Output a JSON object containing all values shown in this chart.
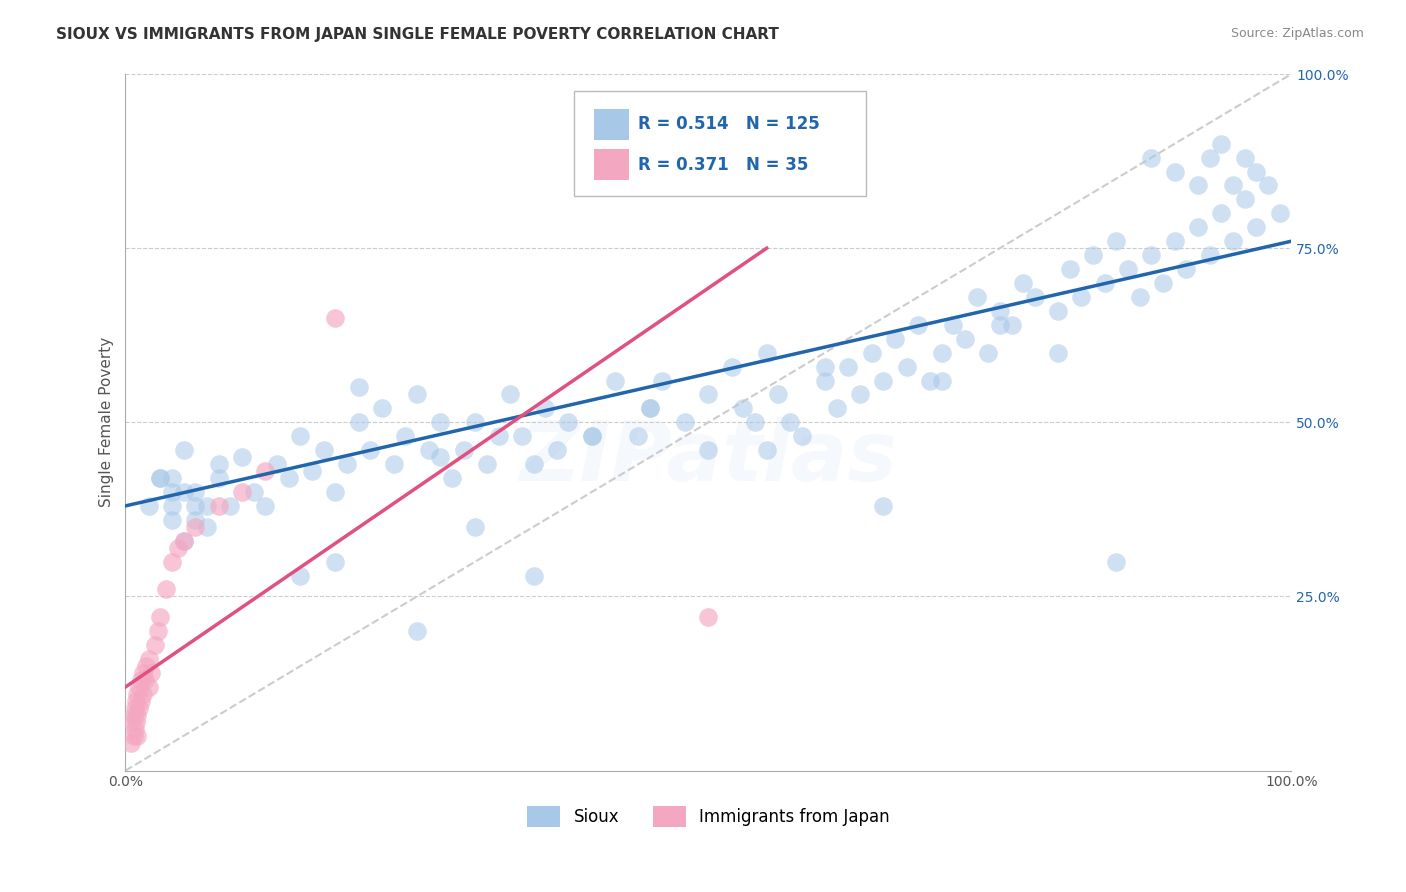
{
  "title": "SIOUX VS IMMIGRANTS FROM JAPAN SINGLE FEMALE POVERTY CORRELATION CHART",
  "source": "Source: ZipAtlas.com",
  "ylabel": "Single Female Poverty",
  "xlim": [
    0,
    1
  ],
  "ylim": [
    0,
    1
  ],
  "legend_blue_label": "Sioux",
  "legend_pink_label": "Immigrants from Japan",
  "blue_R": "0.514",
  "blue_N": "125",
  "pink_R": "0.371",
  "pink_N": "35",
  "blue_color": "#a8c8e8",
  "pink_color": "#f4a7c0",
  "blue_line_color": "#2166ac",
  "pink_line_color": "#e05080",
  "ref_line_color": "#cccccc",
  "watermark": "ZIPatlas",
  "background_color": "#ffffff",
  "grid_color": "#cccccc",
  "blue_scatter_x": [
    0.02,
    0.03,
    0.04,
    0.05,
    0.06,
    0.07,
    0.08,
    0.09,
    0.1,
    0.11,
    0.12,
    0.13,
    0.14,
    0.15,
    0.16,
    0.17,
    0.18,
    0.19,
    0.2,
    0.21,
    0.22,
    0.23,
    0.24,
    0.25,
    0.26,
    0.27,
    0.28,
    0.29,
    0.3,
    0.31,
    0.32,
    0.33,
    0.34,
    0.35,
    0.36,
    0.37,
    0.38,
    0.4,
    0.42,
    0.44,
    0.45,
    0.46,
    0.48,
    0.5,
    0.52,
    0.53,
    0.54,
    0.55,
    0.56,
    0.57,
    0.58,
    0.6,
    0.61,
    0.62,
    0.63,
    0.64,
    0.65,
    0.66,
    0.67,
    0.68,
    0.69,
    0.7,
    0.71,
    0.72,
    0.73,
    0.74,
    0.75,
    0.76,
    0.77,
    0.78,
    0.8,
    0.81,
    0.82,
    0.83,
    0.84,
    0.85,
    0.86,
    0.87,
    0.88,
    0.89,
    0.9,
    0.91,
    0.92,
    0.93,
    0.94,
    0.95,
    0.96,
    0.97,
    0.98,
    0.99,
    0.04,
    0.05,
    0.06,
    0.07,
    0.08,
    0.04,
    0.05,
    0.06,
    0.03,
    0.04,
    0.2,
    0.25,
    0.27,
    0.15,
    0.18,
    0.3,
    0.35,
    0.4,
    0.45,
    0.5,
    0.55,
    0.6,
    0.65,
    0.7,
    0.75,
    0.8,
    0.85,
    0.88,
    0.9,
    0.92,
    0.93,
    0.94,
    0.95,
    0.96,
    0.97
  ],
  "blue_scatter_y": [
    0.38,
    0.42,
    0.36,
    0.33,
    0.4,
    0.35,
    0.42,
    0.38,
    0.45,
    0.4,
    0.38,
    0.44,
    0.42,
    0.48,
    0.43,
    0.46,
    0.4,
    0.44,
    0.5,
    0.46,
    0.52,
    0.44,
    0.48,
    0.54,
    0.46,
    0.5,
    0.42,
    0.46,
    0.5,
    0.44,
    0.48,
    0.54,
    0.48,
    0.44,
    0.52,
    0.46,
    0.5,
    0.48,
    0.56,
    0.48,
    0.52,
    0.56,
    0.5,
    0.54,
    0.58,
    0.52,
    0.5,
    0.46,
    0.54,
    0.5,
    0.48,
    0.56,
    0.52,
    0.58,
    0.54,
    0.6,
    0.56,
    0.62,
    0.58,
    0.64,
    0.56,
    0.6,
    0.64,
    0.62,
    0.68,
    0.6,
    0.66,
    0.64,
    0.7,
    0.68,
    0.66,
    0.72,
    0.68,
    0.74,
    0.7,
    0.76,
    0.72,
    0.68,
    0.74,
    0.7,
    0.76,
    0.72,
    0.78,
    0.74,
    0.8,
    0.76,
    0.82,
    0.78,
    0.84,
    0.8,
    0.38,
    0.4,
    0.36,
    0.38,
    0.44,
    0.42,
    0.46,
    0.38,
    0.42,
    0.4,
    0.55,
    0.2,
    0.45,
    0.28,
    0.3,
    0.35,
    0.28,
    0.48,
    0.52,
    0.46,
    0.6,
    0.58,
    0.38,
    0.56,
    0.64,
    0.6,
    0.3,
    0.88,
    0.86,
    0.84,
    0.88,
    0.9,
    0.84,
    0.88,
    0.86
  ],
  "pink_scatter_x": [
    0.005,
    0.005,
    0.007,
    0.007,
    0.008,
    0.008,
    0.009,
    0.009,
    0.01,
    0.01,
    0.01,
    0.012,
    0.012,
    0.013,
    0.013,
    0.015,
    0.015,
    0.017,
    0.018,
    0.02,
    0.02,
    0.022,
    0.025,
    0.028,
    0.03,
    0.035,
    0.04,
    0.045,
    0.05,
    0.06,
    0.08,
    0.1,
    0.12,
    0.18,
    0.5
  ],
  "pink_scatter_y": [
    0.04,
    0.07,
    0.05,
    0.08,
    0.06,
    0.09,
    0.07,
    0.1,
    0.05,
    0.08,
    0.11,
    0.09,
    0.12,
    0.1,
    0.13,
    0.11,
    0.14,
    0.13,
    0.15,
    0.12,
    0.16,
    0.14,
    0.18,
    0.2,
    0.22,
    0.26,
    0.3,
    0.32,
    0.33,
    0.35,
    0.38,
    0.4,
    0.43,
    0.65,
    0.22
  ],
  "blue_trend_x0": 0.0,
  "blue_trend_y0": 0.38,
  "blue_trend_x1": 1.0,
  "blue_trend_y1": 0.76,
  "pink_trend_x0": 0.0,
  "pink_trend_y0": 0.12,
  "pink_trend_x1": 0.55,
  "pink_trend_y1": 0.75,
  "title_fontsize": 11,
  "axis_label_fontsize": 11,
  "tick_fontsize": 10,
  "legend_fontsize": 12,
  "watermark_fontsize": 60,
  "watermark_alpha": 0.12
}
